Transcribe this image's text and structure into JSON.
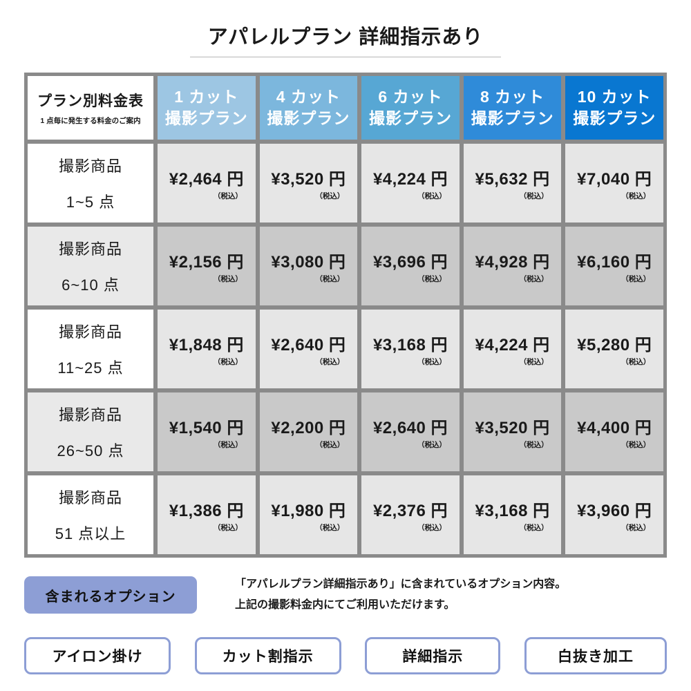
{
  "title": "アパレルプラン 詳細指示あり",
  "table": {
    "corner": {
      "title": "プラン別料金表",
      "subtitle": "1 点毎に発生する料金のご案内"
    },
    "tax_note": "（税込）",
    "columns": [
      {
        "line1": "1 カット",
        "line2": "撮影プラン",
        "color": "#9dc6e3"
      },
      {
        "line1": "4 カット",
        "line2": "撮影プラン",
        "color": "#7cb7dd"
      },
      {
        "line1": "6 カット",
        "line2": "撮影プラン",
        "color": "#57a7d4"
      },
      {
        "line1": "8 カット",
        "line2": "撮影プラン",
        "color": "#2f8bd9"
      },
      {
        "line1": "10 カット",
        "line2": "撮影プラン",
        "color": "#0977d1"
      }
    ],
    "rows": [
      {
        "label_line1": "撮影商品",
        "label_line2": "1~5 点",
        "prices": [
          "¥2,464 円",
          "¥3,520 円",
          "¥4,224 円",
          "¥5,632 円",
          "¥7,040 円"
        ]
      },
      {
        "label_line1": "撮影商品",
        "label_line2": "6~10 点",
        "prices": [
          "¥2,156 円",
          "¥3,080 円",
          "¥3,696 円",
          "¥4,928 円",
          "¥6,160 円"
        ]
      },
      {
        "label_line1": "撮影商品",
        "label_line2": "11~25 点",
        "prices": [
          "¥1,848 円",
          "¥2,640 円",
          "¥3,168 円",
          "¥4,224 円",
          "¥5,280 円"
        ]
      },
      {
        "label_line1": "撮影商品",
        "label_line2": "26~50 点",
        "prices": [
          "¥1,540 円",
          "¥2,200 円",
          "¥2,640 円",
          "¥3,520 円",
          "¥4,400 円"
        ]
      },
      {
        "label_line1": "撮影商品",
        "label_line2": "51 点以上",
        "prices": [
          "¥1,386 円",
          "¥1,980 円",
          "¥2,376 円",
          "¥3,168 円",
          "¥3,960 円"
        ]
      }
    ]
  },
  "options": {
    "badge_label": "含まれるオプション",
    "description_line1": "「アパレルプラン詳細指示あり」に含まれているオプション内容。",
    "description_line2": "上記の撮影料金内にてご利用いただけます。",
    "items": [
      {
        "label": "アイロン掛け"
      },
      {
        "label": "カット割指示"
      },
      {
        "label": "詳細指示"
      },
      {
        "label": "白抜き加工"
      }
    ]
  },
  "colors": {
    "grid_border": "#8a8a8a",
    "row_label_alt_bg": "#e9e9e9",
    "price_light_bg": "#e6e6e6",
    "price_dark_bg": "#c9c9c9",
    "accent_periwinkle": "#8d9ed5"
  }
}
